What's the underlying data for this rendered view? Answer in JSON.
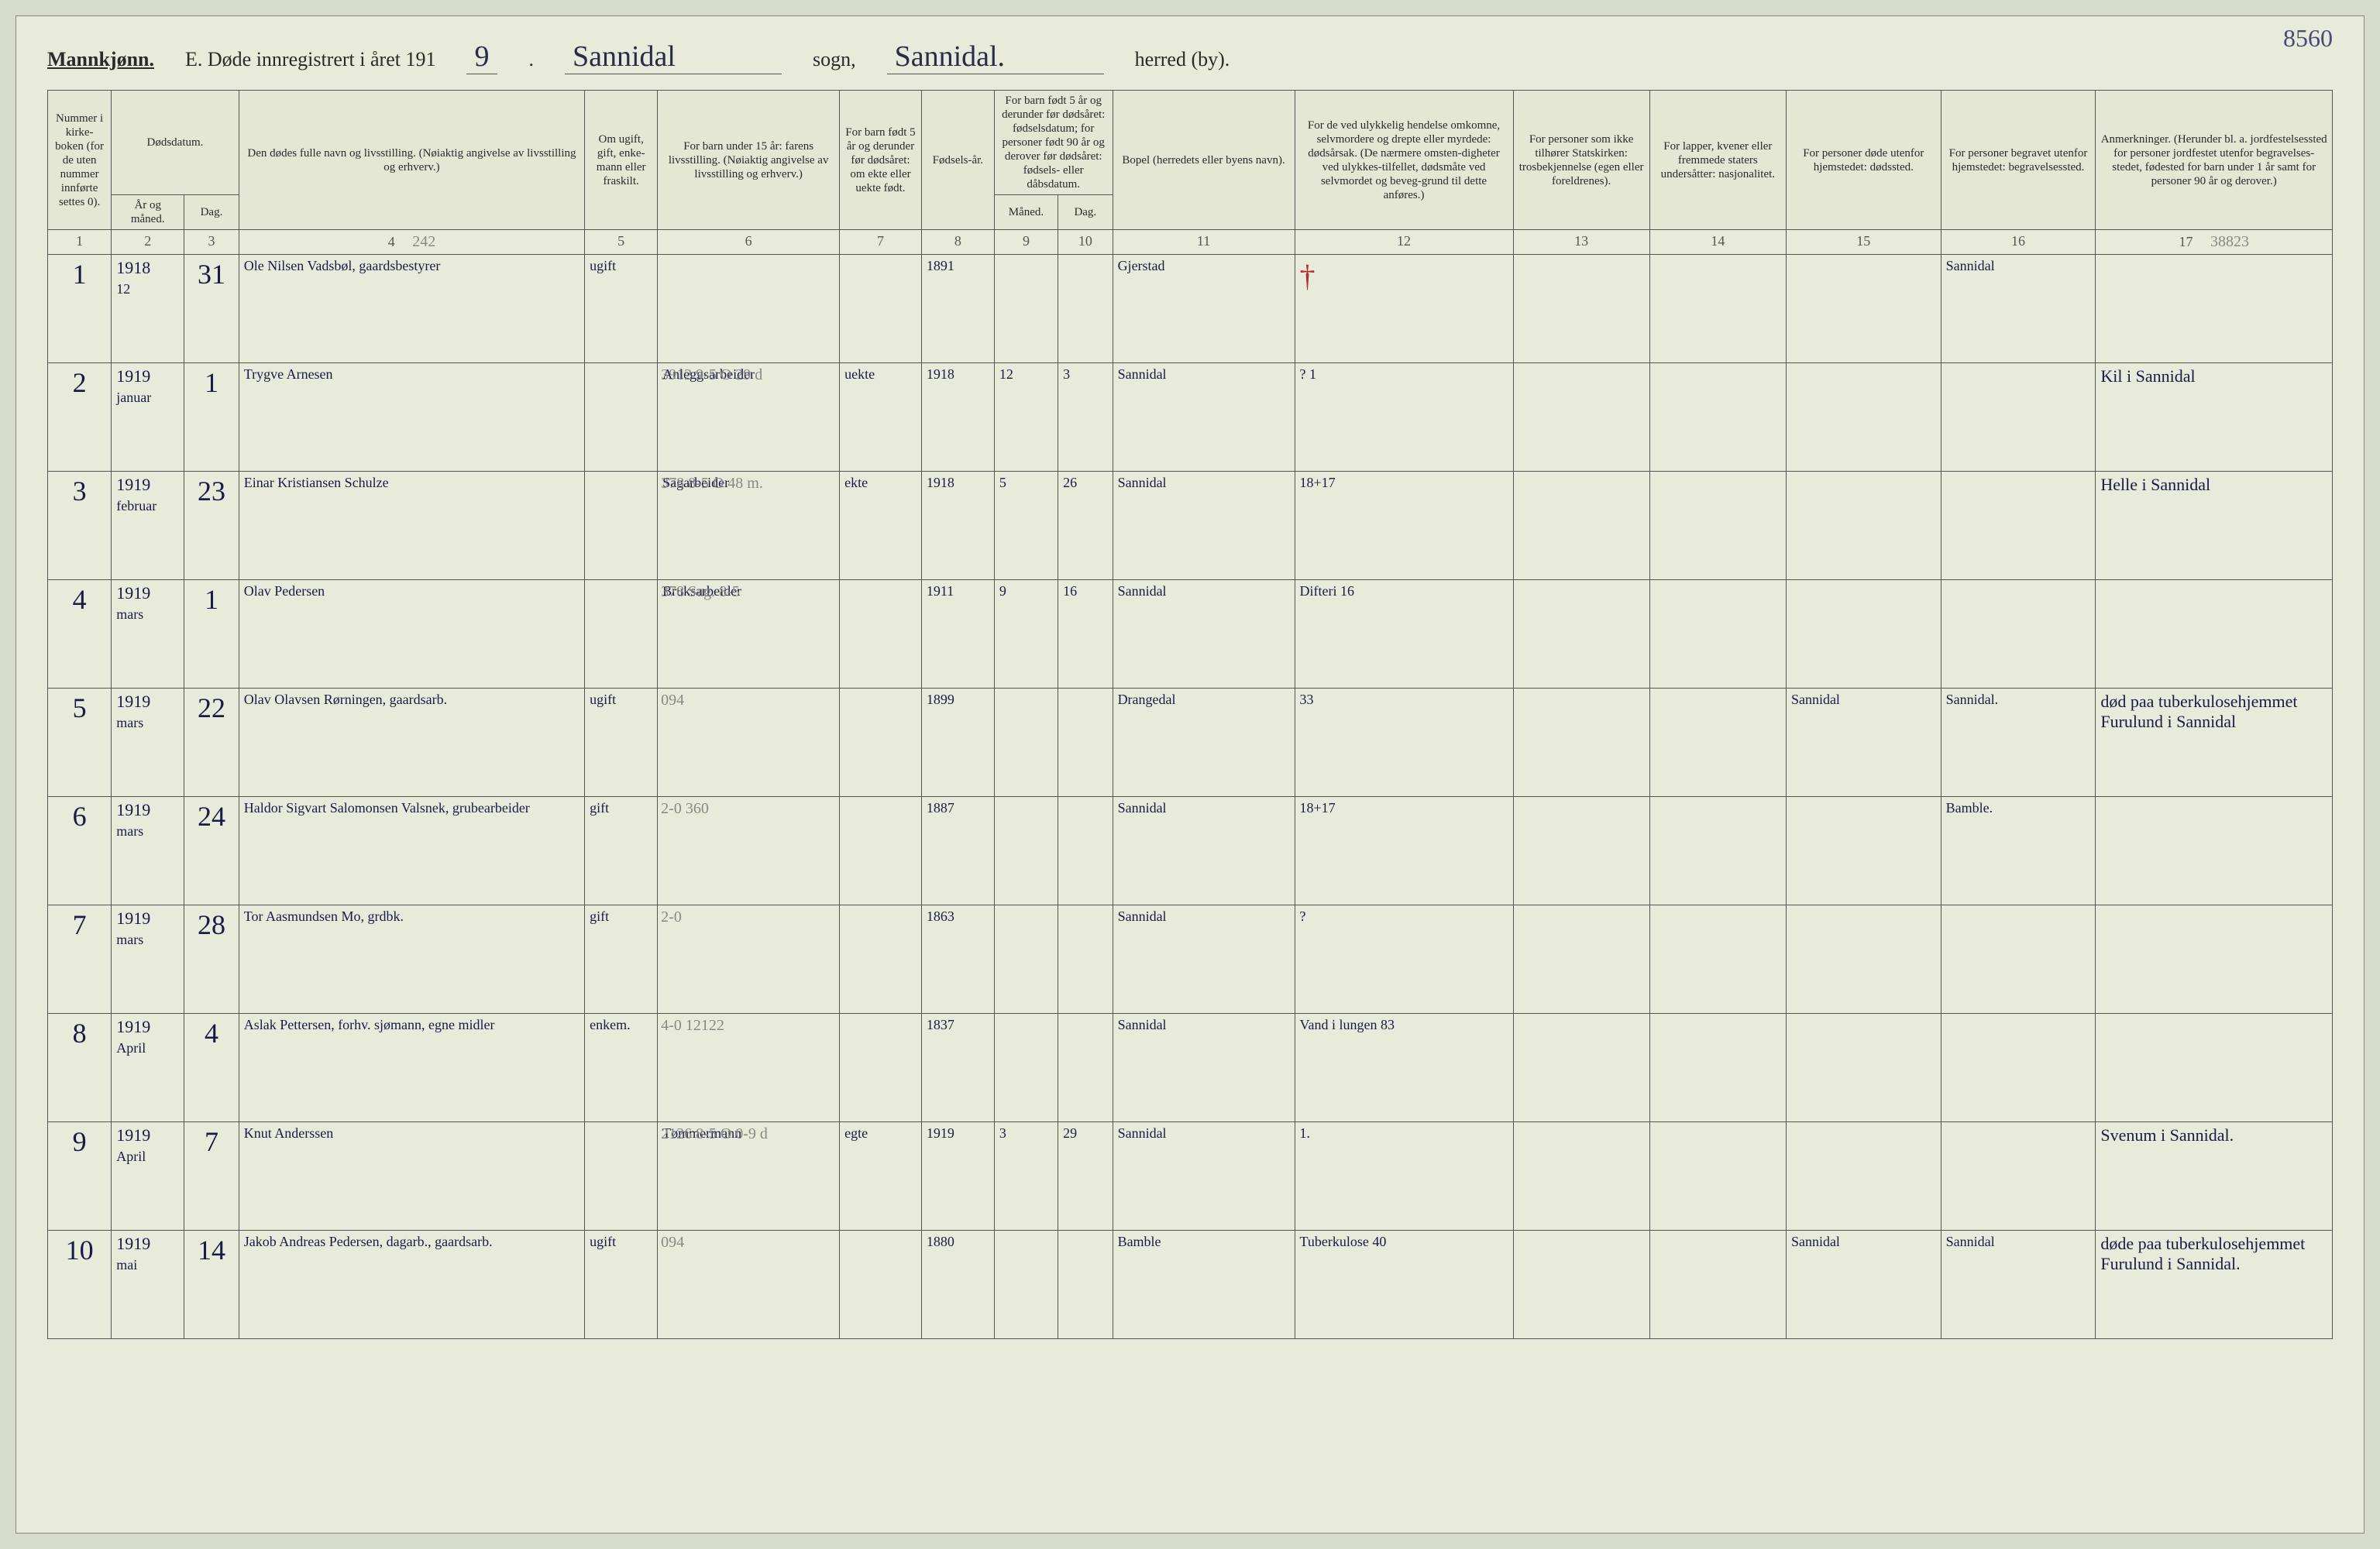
{
  "page_number": "8560",
  "header": {
    "sex": "Mannkjønn.",
    "title_prefix": "E. Døde innregistrert i året 191",
    "year_suffix": "9",
    "parish_label": "sogn,",
    "herred_label": "herred (by).",
    "parish": "Sannidal",
    "herred": "Sannidal."
  },
  "columns": {
    "c1": "Nummer i kirke-boken (for de uten nummer innførte settes 0).",
    "c2": "År og måned.",
    "c3": "Dag.",
    "c2_3_group": "Dødsdatum.",
    "c4": "Den dødes fulle navn og livsstilling. (Nøiaktig angivelse av livsstilling og erhverv.)",
    "c5": "Om ugift, gift, enke-mann eller fraskilt.",
    "c6": "For barn under 15 år: farens livsstilling. (Nøiaktig angivelse av livsstilling og erhverv.)",
    "c7": "For barn født 5 år og derunder før dødsåret: om ekte eller uekte født.",
    "c8": "Fødsels-år.",
    "c9_10_group": "For barn født 5 år og derunder før dødsåret: fødselsdatum; for personer født 90 år og derover før dødsåret: fødsels- eller dåbsdatum.",
    "c9": "Måned.",
    "c10": "Dag.",
    "c11": "Bopel (herredets eller byens navn).",
    "c12": "For de ved ulykkelig hendelse omkomne, selvmordere og drepte eller myrdede: dødsårsak. (De nærmere omsten-digheter ved ulykkes-tilfellet, dødsmåte ved selvmordet og beveg-grund til dette anføres.)",
    "c13": "For personer som ikke tilhører Statskirken: trosbekjennelse (egen eller foreldrenes).",
    "c14": "For lapper, kvener eller fremmede staters undersåtter: nasjonalitet.",
    "c15": "For personer døde utenfor hjemstedet: dødssted.",
    "c16": "For personer begravet utenfor hjemstedet: begravelsessted.",
    "c17": "Anmerkninger. (Herunder bl. a. jordfestelsessted for personer jordfestet utenfor begravelses-stedet, fødested for barn under 1 år samt for personer 90 år og derover.)"
  },
  "colnums": [
    "1",
    "2",
    "3",
    "4",
    "5",
    "6",
    "7",
    "8",
    "9",
    "10",
    "11",
    "12",
    "13",
    "14",
    "15",
    "16",
    "17"
  ],
  "pencil_note": "242",
  "pencil_corner": "38823",
  "rows": [
    {
      "num": "1",
      "year": "1918",
      "month": "12",
      "day": "31",
      "name": "Ole Nilsen Vadsbøl, gaardsbestyrer",
      "marital": "ugift",
      "father": "",
      "ekte": "",
      "birth_year": "1891",
      "bm": "",
      "bd": "",
      "residence": "Gjerstad",
      "cause_mark": "†",
      "cause": "",
      "c13": "",
      "c14": "",
      "c15": "",
      "c16": "Sannidal",
      "notes": ""
    },
    {
      "num": "2",
      "year": "1919",
      "month": "januar",
      "day": "1",
      "name": "Trygve Arnesen",
      "marital": "",
      "father": "Anleggsarbeider",
      "ekte": "uekte",
      "birth_year": "1918",
      "bm": "12",
      "bd": "3",
      "residence": "Sannidal",
      "cause_mark": "",
      "cause": "? 1",
      "c13": "",
      "c14": "",
      "c15": "",
      "c16": "",
      "notes": "Kil i Sannidal",
      "overwrite": "3912  9-5  O  29 d"
    },
    {
      "num": "3",
      "year": "1919",
      "month": "februar",
      "day": "23",
      "name": "Einar Kristiansen Schulze",
      "marital": "",
      "father": "Sagarbeider",
      "ekte": "ekte",
      "birth_year": "1918",
      "bm": "5",
      "bd": "26",
      "residence": "Sannidal",
      "cause_mark": "",
      "cause": "18+17",
      "c13": "",
      "c14": "",
      "c15": "",
      "c16": "",
      "notes": "Helle i Sannidal",
      "overwrite": "378  8-5  O 48 m."
    },
    {
      "num": "4",
      "year": "1919",
      "month": "mars",
      "day": "1",
      "name": "Olav Pedersen",
      "marital": "",
      "father": "Bruksarbeider",
      "ekte": "",
      "birth_year": "1911",
      "bm": "9",
      "bd": "16",
      "residence": "Sannidal",
      "cause_mark": "",
      "cause": "Difteri 16",
      "c13": "",
      "c14": "",
      "c15": "",
      "c16": "",
      "notes": "",
      "overwrite": "378  Sag.  8-5"
    },
    {
      "num": "5",
      "year": "1919",
      "month": "mars",
      "day": "22",
      "name": "Olav Olavsen Rørningen, gaardsarb.",
      "marital": "ugift",
      "father": "",
      "ekte": "",
      "birth_year": "1899",
      "bm": "",
      "bd": "",
      "residence": "Drangedal",
      "cause_mark": "",
      "cause": "33",
      "c13": "",
      "c14": "",
      "c15": "Sannidal",
      "c16": "Sannidal.",
      "notes": "død paa tuberkulosehjemmet Furulund i Sannidal",
      "overwrite": "094"
    },
    {
      "num": "6",
      "year": "1919",
      "month": "mars",
      "day": "24",
      "name": "Haldor Sigvart Salomonsen Valsnek, grubearbeider",
      "marital": "gift",
      "father": "",
      "ekte": "",
      "birth_year": "1887",
      "bm": "",
      "bd": "",
      "residence": "Sannidal",
      "cause_mark": "",
      "cause": "18+17",
      "c13": "",
      "c14": "",
      "c15": "",
      "c16": "Bamble.",
      "notes": "",
      "overwrite": "2-0  360"
    },
    {
      "num": "7",
      "year": "1919",
      "month": "mars",
      "day": "28",
      "name": "Tor Aasmundsen Mo, grdbk.",
      "marital": "gift",
      "father": "",
      "ekte": "",
      "birth_year": "1863",
      "bm": "",
      "bd": "",
      "residence": "Sannidal",
      "cause_mark": "",
      "cause": "?",
      "c13": "",
      "c14": "",
      "c15": "",
      "c16": "",
      "notes": "",
      "overwrite": "2-0"
    },
    {
      "num": "8",
      "year": "1919",
      "month": "April",
      "day": "4",
      "name": "Aslak Pettersen, forhv. sjømann, egne midler",
      "marital": "enkem.",
      "father": "",
      "ekte": "",
      "birth_year": "1837",
      "bm": "",
      "bd": "",
      "residence": "Sannidal",
      "cause_mark": "",
      "cause": "Vand i lungen 83",
      "c13": "",
      "c14": "",
      "c15": "",
      "c16": "",
      "notes": "",
      "overwrite": "4-0  12122"
    },
    {
      "num": "9",
      "year": "1919",
      "month": "April",
      "day": "7",
      "name": "Knut Anderssen",
      "marital": "",
      "father": "Tømmermann",
      "ekte": "egte",
      "birth_year": "1919",
      "bm": "3",
      "bd": "29",
      "residence": "Sannidal",
      "cause_mark": "",
      "cause": "1.",
      "c13": "",
      "c14": "",
      "c15": "",
      "c16": "",
      "notes": "Svenum i Sannidal.",
      "overwrite": "2126  8-5  O 0-9 d"
    },
    {
      "num": "10",
      "year": "1919",
      "month": "mai",
      "day": "14",
      "name": "Jakob Andreas Pedersen, dagarb., gaardsarb.",
      "marital": "ugift",
      "father": "",
      "ekte": "",
      "birth_year": "1880",
      "bm": "",
      "bd": "",
      "residence": "Bamble",
      "cause_mark": "",
      "cause": "Tuberkulose 40",
      "c13": "",
      "c14": "",
      "c15": "Sannidal",
      "c16": "Sannidal",
      "notes": "døde paa tuberkulosehjemmet Furulund i Sannidal.",
      "overwrite": "094"
    }
  ]
}
